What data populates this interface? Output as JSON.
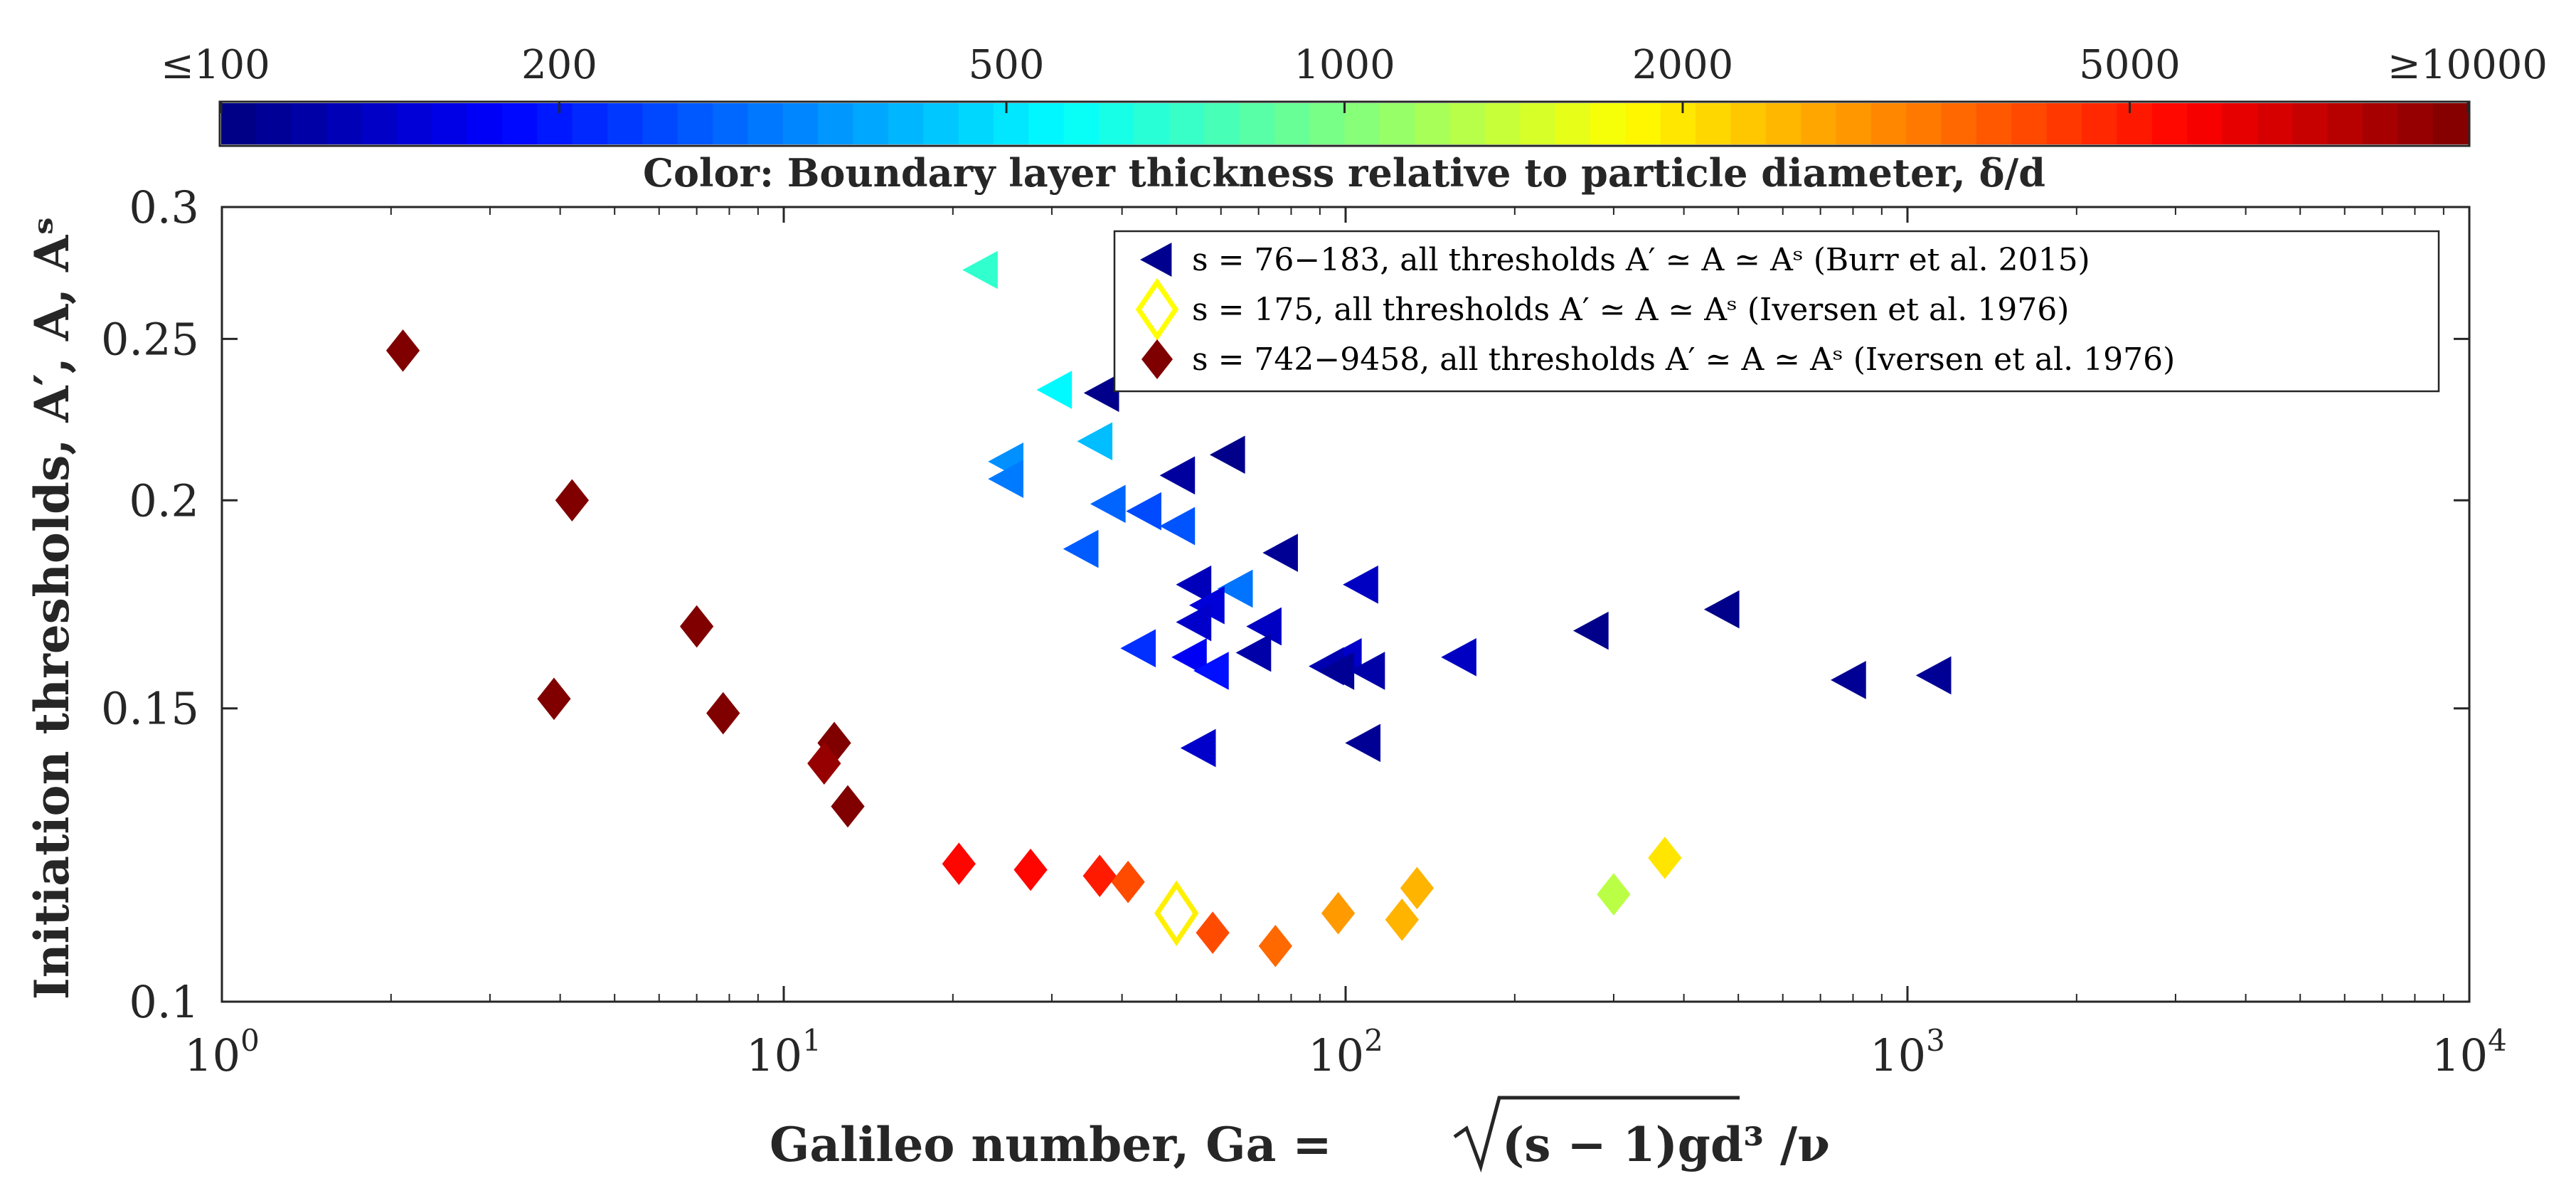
{
  "chart_data": {
    "type": "scatter",
    "xscale": "log",
    "yscale": "log",
    "xlim": [
      1,
      10000
    ],
    "ylim": [
      0.1,
      0.3
    ],
    "xlabel": "Galileo number, Ga = √(s − 1)gd³/ν",
    "xlabel_parts": {
      "pre": "Galileo number, Ga = ",
      "radicand": "(s − 1)gd³",
      "post": "/ν"
    },
    "ylabel": "Initiation thresholds, A′, A, Aˢ",
    "x_ticks": [
      {
        "value": 1,
        "base": "10",
        "exp": "0"
      },
      {
        "value": 10,
        "base": "10",
        "exp": "1"
      },
      {
        "value": 100,
        "base": "10",
        "exp": "2"
      },
      {
        "value": 1000,
        "base": "10",
        "exp": "3"
      },
      {
        "value": 10000,
        "base": "10",
        "exp": "4"
      }
    ],
    "y_ticks": [
      {
        "value": 0.1,
        "label": "0.1"
      },
      {
        "value": 0.15,
        "label": "0.15"
      },
      {
        "value": 0.2,
        "label": "0.2"
      },
      {
        "value": 0.25,
        "label": "0.25"
      },
      {
        "value": 0.3,
        "label": "0.3"
      }
    ],
    "colorbar": {
      "title": "Color: Boundary layer thickness relative to particle diameter, δ/d",
      "colormap": "jet",
      "range": [
        100,
        10000
      ],
      "scale": "log",
      "ticks": [
        {
          "value": 100,
          "label": "≤100"
        },
        {
          "value": 200,
          "label": "200"
        },
        {
          "value": 500,
          "label": "500"
        },
        {
          "value": 1000,
          "label": "1000"
        },
        {
          "value": 2000,
          "label": "2000"
        },
        {
          "value": 5000,
          "label": "5000"
        },
        {
          "value": 10000,
          "label": "≥10000"
        }
      ]
    },
    "legend_position": "top-right",
    "series": [
      {
        "name": "s = 76−183, all thresholds A′ ≃ A ≃ Aˢ (Burr et al. 2015)",
        "marker": "triangle-left",
        "filled": true,
        "legend_color": "#00008f",
        "points": [
          {
            "x": 22.5,
            "y": 0.275,
            "delta": 700
          },
          {
            "x": 30.5,
            "y": 0.233,
            "delta": 550
          },
          {
            "x": 37,
            "y": 0.232,
            "delta": 105
          },
          {
            "x": 36,
            "y": 0.217,
            "delta": 420
          },
          {
            "x": 25,
            "y": 0.211,
            "delta": 340
          },
          {
            "x": 25,
            "y": 0.206,
            "delta": 310
          },
          {
            "x": 62,
            "y": 0.213,
            "delta": 105
          },
          {
            "x": 50.5,
            "y": 0.207,
            "delta": 115
          },
          {
            "x": 38,
            "y": 0.199,
            "delta": 280
          },
          {
            "x": 44,
            "y": 0.197,
            "delta": 250
          },
          {
            "x": 50.5,
            "y": 0.193,
            "delta": 260
          },
          {
            "x": 34,
            "y": 0.187,
            "delta": 270
          },
          {
            "x": 77,
            "y": 0.186,
            "delta": 110
          },
          {
            "x": 54,
            "y": 0.178,
            "delta": 130
          },
          {
            "x": 64,
            "y": 0.177,
            "delta": 300
          },
          {
            "x": 57,
            "y": 0.173,
            "delta": 150
          },
          {
            "x": 54,
            "y": 0.169,
            "delta": 140
          },
          {
            "x": 72,
            "y": 0.168,
            "delta": 135
          },
          {
            "x": 107,
            "y": 0.178,
            "delta": 135
          },
          {
            "x": 470,
            "y": 0.172,
            "delta": 105
          },
          {
            "x": 275,
            "y": 0.167,
            "delta": 105
          },
          {
            "x": 43,
            "y": 0.163,
            "delta": 220
          },
          {
            "x": 53,
            "y": 0.161,
            "delta": 170
          },
          {
            "x": 69,
            "y": 0.162,
            "delta": 120
          },
          {
            "x": 100,
            "y": 0.161,
            "delta": 140
          },
          {
            "x": 160,
            "y": 0.161,
            "delta": 135
          },
          {
            "x": 58,
            "y": 0.158,
            "delta": 190
          },
          {
            "x": 93,
            "y": 0.159,
            "delta": 125
          },
          {
            "x": 97,
            "y": 0.158,
            "delta": 110
          },
          {
            "x": 110,
            "y": 0.158,
            "delta": 120
          },
          {
            "x": 790,
            "y": 0.156,
            "delta": 110
          },
          {
            "x": 1120,
            "y": 0.157,
            "delta": 110
          },
          {
            "x": 55,
            "y": 0.142,
            "delta": 140
          },
          {
            "x": 108,
            "y": 0.143,
            "delta": 110
          }
        ]
      },
      {
        "name": "s = 175, all thresholds A′ ≃ A ≃ Aˢ (Iversen et al. 1976)",
        "marker": "diamond",
        "filled": false,
        "legend_color": "#ffff00",
        "points": [
          {
            "x": 50,
            "y": 0.113,
            "delta": 1900
          }
        ]
      },
      {
        "name": "s = 742−9458, all thresholds A′ ≃ A ≃ Aˢ (Iversen et al. 1976)",
        "marker": "diamond",
        "filled": true,
        "legend_color": "#7f0000",
        "points": [
          {
            "x": 2.1,
            "y": 0.246,
            "delta": 10000
          },
          {
            "x": 4.2,
            "y": 0.2,
            "delta": 10000
          },
          {
            "x": 7,
            "y": 0.168,
            "delta": 10000
          },
          {
            "x": 3.9,
            "y": 0.152,
            "delta": 10000
          },
          {
            "x": 7.8,
            "y": 0.149,
            "delta": 10000
          },
          {
            "x": 12.3,
            "y": 0.143,
            "delta": 10000
          },
          {
            "x": 11.8,
            "y": 0.139,
            "delta": 9000
          },
          {
            "x": 13,
            "y": 0.131,
            "delta": 10000
          },
          {
            "x": 20.5,
            "y": 0.121,
            "delta": 5500
          },
          {
            "x": 27.5,
            "y": 0.12,
            "delta": 5500
          },
          {
            "x": 36.5,
            "y": 0.119,
            "delta": 5000
          },
          {
            "x": 41,
            "y": 0.118,
            "delta": 4000
          },
          {
            "x": 58,
            "y": 0.11,
            "delta": 4000
          },
          {
            "x": 75,
            "y": 0.108,
            "delta": 3500
          },
          {
            "x": 97,
            "y": 0.113,
            "delta": 2800
          },
          {
            "x": 126,
            "y": 0.112,
            "delta": 2500
          },
          {
            "x": 134,
            "y": 0.117,
            "delta": 2500
          },
          {
            "x": 300,
            "y": 0.116,
            "delta": 1300
          },
          {
            "x": 370,
            "y": 0.122,
            "delta": 2000
          }
        ]
      }
    ]
  }
}
